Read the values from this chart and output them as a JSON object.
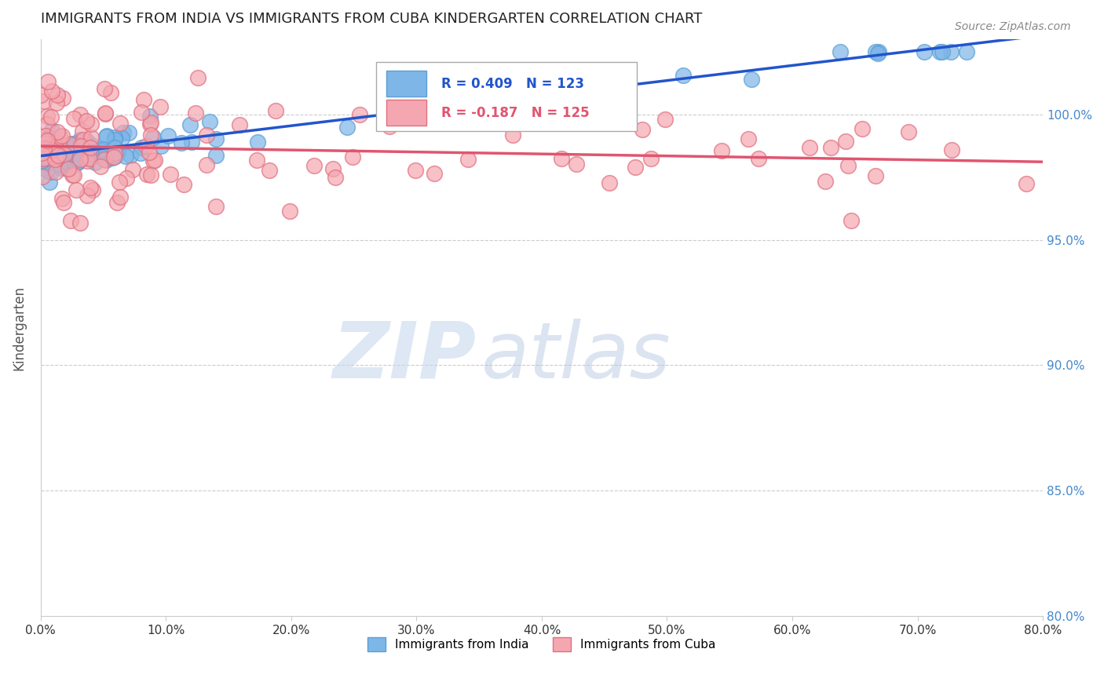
{
  "title": "IMMIGRANTS FROM INDIA VS IMMIGRANTS FROM CUBA KINDERGARTEN CORRELATION CHART",
  "source": "Source: ZipAtlas.com",
  "xlabel": "",
  "ylabel": "Kindergarten",
  "xlim": [
    0.0,
    80.0
  ],
  "ylim": [
    80.0,
    103.0
  ],
  "yticks": [
    80.0,
    85.0,
    90.0,
    95.0,
    100.0
  ],
  "xticks": [
    0.0,
    10.0,
    20.0,
    30.0,
    40.0,
    50.0,
    60.0,
    70.0,
    80.0
  ],
  "india_color": "#7EB6E8",
  "india_edge": "#5A9FD4",
  "cuba_color": "#F4A7B0",
  "cuba_edge": "#E07080",
  "india_line_color": "#2255CC",
  "cuba_line_color": "#E05570",
  "india_R": 0.409,
  "india_N": 123,
  "cuba_R": -0.187,
  "cuba_N": 125,
  "legend_india": "Immigrants from India",
  "legend_cuba": "Immigrants from Cuba",
  "watermark_zip": "ZIP",
  "watermark_atlas": "atlas",
  "background_color": "#ffffff",
  "grid_color": "#cccccc",
  "title_fontsize": 13,
  "axis_label_color": "#555555",
  "right_axis_color": "#4488CC",
  "india_seed": 42,
  "cuba_seed": 99
}
